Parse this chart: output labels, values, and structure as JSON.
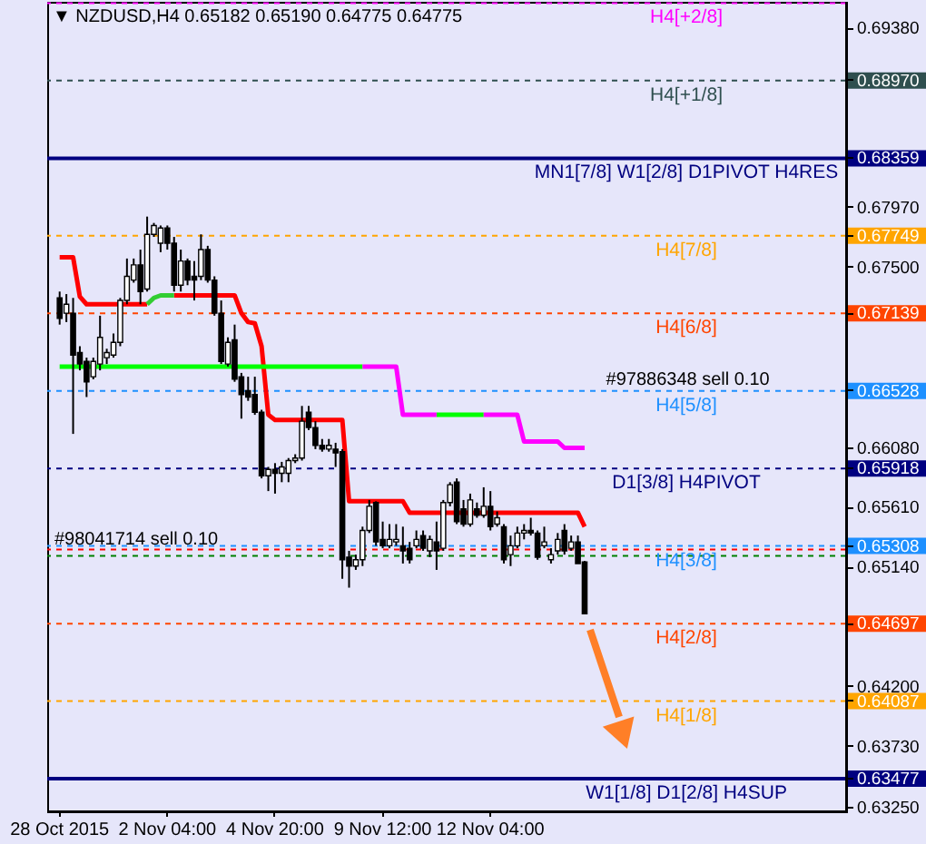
{
  "chart_data": {
    "type": "candlestick",
    "title": "▼ NZDUSD,H4 0.65182 0.65190 0.64775 0.64775",
    "categories": [
      "28 Oct 2015",
      null,
      null,
      null,
      null,
      null,
      null,
      null,
      null,
      null,
      null,
      null,
      null,
      null,
      null,
      null,
      "2 Nov 04:00",
      null,
      null,
      null,
      null,
      null,
      null,
      null,
      null,
      null,
      null,
      null,
      null,
      null,
      null,
      null,
      "4 Nov 20:00",
      null,
      null,
      null,
      null,
      null,
      null,
      null,
      null,
      null,
      null,
      null,
      null,
      null,
      null,
      null,
      "9 Nov 12:00",
      null,
      null,
      null,
      null,
      null,
      null,
      null,
      null,
      null,
      null,
      null,
      null,
      null,
      null,
      null,
      "12 Nov 04:00",
      null,
      null,
      null,
      null,
      null,
      null,
      null,
      null,
      null,
      null,
      null,
      null,
      null,
      null,
      null,
      null,
      null,
      null,
      null,
      null,
      null,
      null,
      null,
      null,
      null,
      null,
      null,
      null,
      null,
      null,
      null,
      null,
      null,
      null,
      null,
      null,
      null,
      null,
      null,
      null,
      null,
      null,
      null,
      null,
      null,
      null,
      null,
      null,
      null,
      null,
      null
    ],
    "ohlc": [
      [
        0.6726,
        0.6731,
        0.6705,
        0.671
      ],
      [
        0.6714,
        0.6729,
        0.6707,
        0.6721
      ],
      [
        0.6714,
        0.6726,
        0.6619,
        0.6681
      ],
      [
        0.6683,
        0.6688,
        0.6669,
        0.6674
      ],
      [
        0.6676,
        0.6679,
        0.6648,
        0.666
      ],
      [
        0.6664,
        0.6679,
        0.6662,
        0.6676
      ],
      [
        0.6674,
        0.6712,
        0.6669,
        0.6695
      ],
      [
        0.6679,
        0.6686,
        0.6674,
        0.6683
      ],
      [
        0.6681,
        0.6698,
        0.6679,
        0.6691
      ],
      [
        0.6691,
        0.6726,
        0.6688,
        0.6724
      ],
      [
        0.6724,
        0.6757,
        0.6721,
        0.6743
      ],
      [
        0.674,
        0.6757,
        0.6738,
        0.6752
      ],
      [
        0.6752,
        0.6764,
        0.6721,
        0.6731
      ],
      [
        0.6733,
        0.679,
        0.6731,
        0.6776
      ],
      [
        0.6776,
        0.6785,
        0.6774,
        0.6783
      ],
      [
        0.6769,
        0.6783,
        0.6762,
        0.6781
      ],
      [
        0.6781,
        0.6783,
        0.6764,
        0.6769
      ],
      [
        0.6769,
        0.6774,
        0.6731,
        0.6736
      ],
      [
        0.6736,
        0.6764,
        0.6731,
        0.6755
      ],
      [
        0.6755,
        0.6757,
        0.6736,
        0.674
      ],
      [
        0.6743,
        0.6755,
        0.6724,
        0.674
      ],
      [
        0.6743,
        0.6776,
        0.674,
        0.6764
      ],
      [
        0.6764,
        0.6767,
        0.6738,
        0.674
      ],
      [
        0.674,
        0.6743,
        0.6712,
        0.6714
      ],
      [
        0.6714,
        0.6724,
        0.6674,
        0.6676
      ],
      [
        0.6674,
        0.6695,
        0.6672,
        0.6691
      ],
      [
        0.6693,
        0.6705,
        0.666,
        0.6662
      ],
      [
        0.6664,
        0.6667,
        0.6631,
        0.665
      ],
      [
        0.6653,
        0.6664,
        0.6645,
        0.6648
      ],
      [
        0.665,
        0.6664,
        0.6634,
        0.6636
      ],
      [
        0.6636,
        0.6638,
        0.6584,
        0.6586
      ],
      [
        0.6586,
        0.6593,
        0.6574,
        0.6591
      ],
      [
        0.6591,
        0.6596,
        0.6572,
        0.6588
      ],
      [
        0.6588,
        0.6597,
        0.6581,
        0.6593
      ],
      [
        0.6588,
        0.66,
        0.6581,
        0.6598
      ],
      [
        0.6598,
        0.6603,
        0.6596,
        0.66
      ],
      [
        0.66,
        0.6641,
        0.6598,
        0.6629
      ],
      [
        0.6636,
        0.6641,
        0.6622,
        0.6624
      ],
      [
        0.6624,
        0.6629,
        0.6607,
        0.661
      ],
      [
        0.661,
        0.6615,
        0.6605,
        0.6607
      ],
      [
        0.6607,
        0.6615,
        0.6605,
        0.661
      ],
      [
        0.6607,
        0.6612,
        0.6593,
        0.6604
      ],
      [
        0.6605,
        0.6607,
        0.6505,
        0.652
      ],
      [
        0.6522,
        0.6527,
        0.6498,
        0.6515
      ],
      [
        0.6515,
        0.6524,
        0.6512,
        0.652
      ],
      [
        0.652,
        0.6546,
        0.6515,
        0.6543
      ],
      [
        0.6543,
        0.6567,
        0.6541,
        0.6562
      ],
      [
        0.6565,
        0.6566,
        0.6531,
        0.6534
      ],
      [
        0.6536,
        0.655,
        0.6529,
        0.6531
      ],
      [
        0.6531,
        0.6548,
        0.6529,
        0.6536
      ],
      [
        0.6534,
        0.6548,
        0.6531,
        0.6536
      ],
      [
        0.6531,
        0.6546,
        0.6517,
        0.6527
      ],
      [
        0.6529,
        0.6534,
        0.6517,
        0.652
      ],
      [
        0.6531,
        0.6543,
        0.6529,
        0.6536
      ],
      [
        0.6539,
        0.6543,
        0.6527,
        0.6529
      ],
      [
        0.6527,
        0.6539,
        0.6522,
        0.6536
      ],
      [
        0.6534,
        0.655,
        0.6512,
        0.6527
      ],
      [
        0.6529,
        0.6567,
        0.6527,
        0.6565
      ],
      [
        0.6565,
        0.6581,
        0.6562,
        0.6579
      ],
      [
        0.6581,
        0.6584,
        0.6548,
        0.655
      ],
      [
        0.656,
        0.6567,
        0.6546,
        0.6548
      ],
      [
        0.6548,
        0.6572,
        0.6546,
        0.6567
      ],
      [
        0.656,
        0.6565,
        0.6553,
        0.6555
      ],
      [
        0.6555,
        0.6577,
        0.6553,
        0.6562
      ],
      [
        0.6562,
        0.6574,
        0.6543,
        0.6546
      ],
      [
        0.6548,
        0.6558,
        0.6546,
        0.6553
      ],
      [
        0.6546,
        0.6548,
        0.6517,
        0.652
      ],
      [
        0.6524,
        0.6539,
        0.6515,
        0.6531
      ],
      [
        0.6531,
        0.6546,
        0.6529,
        0.6541
      ],
      [
        0.6541,
        0.6548,
        0.6536,
        0.6543
      ],
      [
        0.6543,
        0.6553,
        0.6539,
        0.6541
      ],
      [
        0.6541,
        0.6543,
        0.652,
        0.6522
      ],
      [
        0.6531,
        0.6546,
        0.6529,
        0.6534
      ],
      [
        0.652,
        0.6529,
        0.6517,
        0.6524
      ],
      [
        0.6527,
        0.6541,
        0.6524,
        0.6536
      ],
      [
        0.6543,
        0.6548,
        0.6524,
        0.6527
      ],
      [
        0.6529,
        0.6539,
        0.6527,
        0.6534
      ],
      [
        0.6534,
        0.6539,
        0.6517,
        0.6517
      ],
      [
        0.65182,
        0.6519,
        0.64775,
        0.64775
      ],
      null,
      null,
      null,
      null,
      null,
      null,
      null,
      null,
      null,
      null,
      null,
      null,
      null,
      null,
      null,
      null,
      null,
      null,
      null,
      null,
      null,
      null,
      null,
      null,
      null,
      null,
      null,
      null,
      null,
      null,
      null,
      null,
      null,
      null,
      null,
      null,
      null
    ],
    "series": [
      {
        "type": "line",
        "color": "#ff0000",
        "values": [
          0.6758,
          0.6758,
          0.6758,
          0.6727,
          0.6721,
          0.6721,
          0.6721,
          0.6721,
          0.6721,
          0.6721,
          0.6721,
          0.6721,
          0.6721,
          0.6721,
          null,
          null,
          null,
          0.6728,
          0.6728,
          0.6728,
          0.6728,
          0.6728,
          0.6728,
          0.6728,
          0.6728,
          0.6728,
          0.6728,
          0.6714,
          0.6707,
          0.6706,
          0.6688,
          0.6634,
          0.663,
          0.663,
          0.663,
          0.663,
          0.663,
          0.663,
          0.663,
          0.663,
          0.663,
          0.663,
          0.663,
          0.6566,
          0.6566,
          0.6566,
          0.6566,
          0.6566,
          0.6566,
          0.6566,
          0.6566,
          0.6566,
          0.6557,
          0.6557,
          0.6557,
          0.6557,
          0.6557,
          0.6557,
          0.6557,
          0.6557,
          0.6557,
          0.6557,
          0.6557,
          0.6557,
          0.6557,
          0.6557,
          0.6557,
          0.6557,
          0.6557,
          0.6557,
          0.6557,
          0.6557,
          0.6557,
          0.6557,
          0.6557,
          0.6557,
          0.6557,
          0.6557,
          0.6546,
          null,
          null,
          null,
          null,
          null,
          null,
          null,
          null,
          null,
          null,
          null,
          null,
          null,
          null,
          null,
          null,
          null,
          null,
          null,
          null,
          null,
          null,
          null,
          null,
          null,
          null,
          null,
          null,
          null,
          null,
          null,
          null,
          null,
          null,
          null,
          null,
          null
        ]
      },
      {
        "type": "line",
        "color": "#32cd32",
        "values": [
          null,
          null,
          null,
          null,
          null,
          null,
          null,
          null,
          null,
          null,
          null,
          null,
          null,
          0.6721,
          0.6726,
          0.6728,
          0.6728,
          0.6728,
          null,
          null,
          null,
          null,
          null,
          null,
          null,
          null,
          null,
          null,
          null,
          null,
          null,
          null,
          null,
          null,
          null,
          null,
          null,
          null,
          null,
          null,
          null,
          null,
          null,
          null,
          null,
          null,
          null,
          null,
          null,
          null,
          null,
          null,
          null,
          null,
          null,
          null,
          null,
          null,
          null,
          null,
          null,
          null,
          null,
          null,
          null,
          null,
          null,
          null,
          null,
          null,
          null,
          null,
          null,
          null,
          null,
          null,
          null,
          null,
          null,
          null,
          null,
          null,
          null,
          null,
          null,
          null,
          null,
          null,
          null,
          null,
          null,
          null,
          null,
          null,
          null,
          null,
          null,
          null,
          null,
          null,
          null,
          null,
          null,
          null,
          null,
          null,
          null,
          null,
          null,
          null,
          null,
          null,
          null,
          null,
          null,
          null
        ]
      },
      {
        "type": "line",
        "color": "#00ff00",
        "values": [
          0.6672,
          0.6672,
          0.6672,
          0.6672,
          0.6672,
          0.6672,
          0.6672,
          0.6672,
          0.6672,
          0.6672,
          0.6672,
          0.6672,
          0.6672,
          0.6672,
          0.6672,
          0.6672,
          0.6672,
          0.6672,
          0.6672,
          0.6672,
          0.6672,
          0.6672,
          0.6672,
          0.6672,
          0.6672,
          0.6672,
          0.6672,
          0.6672,
          0.6672,
          0.6672,
          0.6672,
          0.6672,
          0.6672,
          0.6672,
          0.6672,
          0.6672,
          0.6672,
          0.6672,
          0.6672,
          0.6672,
          0.6672,
          0.6672,
          0.6672,
          0.6672,
          0.6672,
          0.6672,
          null,
          null,
          null,
          null,
          null,
          null,
          null,
          null,
          null,
          null,
          0.6634,
          0.6634,
          0.6634,
          0.6634,
          0.6634,
          0.6634,
          0.6634,
          0.6634,
          null,
          null,
          null,
          null,
          null,
          null,
          null,
          null,
          null,
          null,
          null,
          null,
          null,
          null,
          null,
          null,
          null,
          null,
          null,
          null,
          null,
          null,
          null,
          null,
          null,
          null,
          null,
          null,
          null,
          null,
          null,
          null,
          null,
          null,
          null,
          null,
          null,
          null,
          null,
          null,
          null,
          null,
          null,
          null,
          null,
          null,
          null,
          null,
          null,
          null,
          null,
          null
        ]
      },
      {
        "type": "line",
        "color": "#ff00ff",
        "values": [
          null,
          null,
          null,
          null,
          null,
          null,
          null,
          null,
          null,
          null,
          null,
          null,
          null,
          null,
          null,
          null,
          null,
          null,
          null,
          null,
          null,
          null,
          null,
          null,
          null,
          null,
          null,
          null,
          null,
          null,
          null,
          null,
          null,
          null,
          null,
          null,
          null,
          null,
          null,
          null,
          null,
          null,
          null,
          null,
          null,
          0.6672,
          0.6672,
          0.6672,
          0.6672,
          0.6672,
          0.6672,
          0.6634,
          0.6634,
          0.6634,
          0.6634,
          0.6634,
          0.6634,
          null,
          null,
          null,
          null,
          null,
          null,
          0.6634,
          0.6634,
          0.6634,
          0.6634,
          0.6634,
          0.6634,
          0.6613,
          0.6613,
          0.6613,
          0.6613,
          0.6613,
          0.6613,
          0.6608,
          0.6608,
          0.6608,
          0.6608,
          null,
          null,
          null,
          null,
          null,
          null,
          null,
          null,
          null,
          null,
          null,
          null,
          null,
          null,
          null,
          null,
          null,
          null,
          null,
          null,
          null,
          null,
          null,
          null,
          null,
          null,
          null,
          null,
          null,
          null,
          null,
          null,
          null,
          null,
          null,
          null,
          null
        ]
      }
    ],
    "ylim": [
      0.6322,
      0.6959
    ],
    "yticks": [
      {
        "value": 0.6938,
        "label": "0.69380"
      },
      {
        "value": 0.6897,
        "label": "0.68970"
      },
      {
        "value": 0.68359,
        "label": "0.68359"
      },
      {
        "value": 0.6797,
        "label": "0.67970"
      },
      {
        "value": 0.67749,
        "label": "0.67749"
      },
      {
        "value": 0.675,
        "label": "0.67500"
      },
      {
        "value": 0.67139,
        "label": "0.67139"
      },
      {
        "value": 0.66528,
        "label": "0.66528"
      },
      {
        "value": 0.6608,
        "label": "0.66080"
      },
      {
        "value": 0.65918,
        "label": "0.65918"
      },
      {
        "value": 0.6561,
        "label": "0.65610"
      },
      {
        "value": 0.65308,
        "label": "0.65308"
      },
      {
        "value": 0.6514,
        "label": "0.65140"
      },
      {
        "value": 0.64697,
        "label": "0.64697"
      },
      {
        "value": 0.642,
        "label": "0.64200"
      },
      {
        "value": 0.64087,
        "label": "0.64087"
      },
      {
        "value": 0.6373,
        "label": "0.63730"
      },
      {
        "value": 0.63477,
        "label": "0.63477"
      },
      {
        "value": 0.6325,
        "label": "0.63250"
      }
    ],
    "ref_lines": [
      {
        "axis": "y",
        "value": 0.6958,
        "label": "H4[+2/8]",
        "color": "#ff00ff",
        "line_style": "dashed"
      },
      {
        "axis": "y",
        "value": 0.6897,
        "label": "H4[+1/8]",
        "color": "#2f4f4f",
        "line_style": "dashed"
      },
      {
        "axis": "y",
        "value": 0.68359,
        "label": "MN1[7/8] W1[2/8] D1PIVOT H4RES",
        "color": "#000080",
        "line_style": "solid"
      },
      {
        "axis": "y",
        "value": 0.67749,
        "label": "H4[7/8]",
        "color": "#ffa500",
        "line_style": "dashed"
      },
      {
        "axis": "y",
        "value": 0.67139,
        "label": "H4[6/8]",
        "color": "#ff4500",
        "line_style": "dashed"
      },
      {
        "axis": "y",
        "value": 0.66528,
        "label": "H4[5/8]",
        "color": "#1e90ff",
        "line_style": "dashed"
      },
      {
        "axis": "y",
        "value": 0.65918,
        "label": "D1[3/8] H4PIVOT",
        "color": "#000080",
        "line_style": "dashed"
      },
      {
        "axis": "y",
        "value": 0.65308,
        "label": "H4[3/8]",
        "color": "#1e90ff",
        "line_style": "dashed"
      },
      {
        "axis": "y",
        "value": 0.64697,
        "label": "H4[2/8]",
        "color": "#ff4500",
        "line_style": "dashed"
      },
      {
        "axis": "y",
        "value": 0.64087,
        "label": "H4[1/8]",
        "color": "#ffa500",
        "line_style": "dashed"
      },
      {
        "axis": "y",
        "value": 0.63477,
        "label": "W1[1/8] D1[2/8] H4SUP",
        "color": "#000080",
        "line_style": "solid"
      },
      {
        "axis": "y",
        "value": 0.6528,
        "color": "#ff0000",
        "line_style": "dashed"
      },
      {
        "axis": "y",
        "value": 0.6523,
        "color": "#008000",
        "line_style": "dashed"
      }
    ],
    "annotations": [
      {
        "text": "#97886348 sell 0.10",
        "y": 0.6653
      },
      {
        "text": "#98041714 sell 0.10",
        "y": 0.6528
      }
    ]
  }
}
